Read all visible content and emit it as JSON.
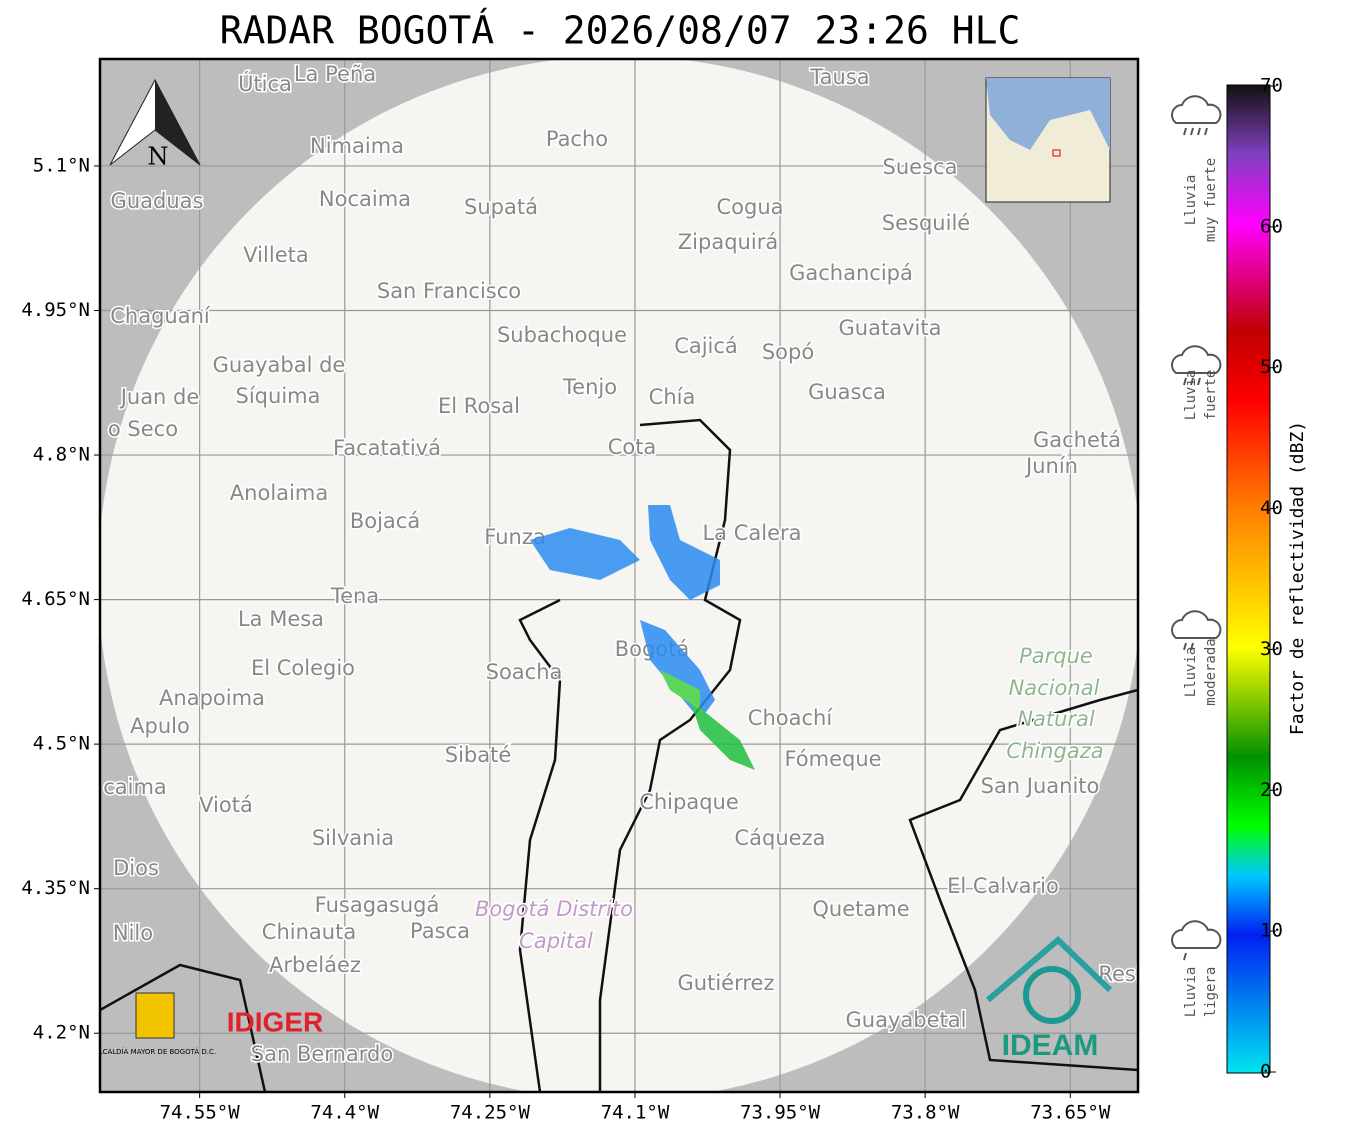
{
  "title": "RADAR BOGOTÁ - 2026/08/07 23:26 HLC",
  "map": {
    "xlim": [
      -74.653,
      -73.58
    ],
    "ylim": [
      4.139,
      5.211
    ],
    "xticks": [
      {
        "value": -74.55,
        "label": "74.55°W"
      },
      {
        "value": -74.4,
        "label": "74.4°W"
      },
      {
        "value": -74.25,
        "label": "74.25°W"
      },
      {
        "value": -74.1,
        "label": "74.1°W"
      },
      {
        "value": -73.95,
        "label": "73.95°W"
      },
      {
        "value": -73.8,
        "label": "73.8°W"
      },
      {
        "value": -73.65,
        "label": "73.65°W"
      }
    ],
    "yticks": [
      {
        "value": 5.1,
        "label": "5.1°N"
      },
      {
        "value": 4.95,
        "label": "4.95°N"
      },
      {
        "value": 4.8,
        "label": "4.8°N"
      },
      {
        "value": 4.65,
        "label": "4.65°N"
      },
      {
        "value": 4.5,
        "label": "4.5°N"
      },
      {
        "value": 4.35,
        "label": "4.35°N"
      },
      {
        "value": 4.2,
        "label": "4.2°N"
      }
    ],
    "north": "N",
    "places": [
      "Útica",
      "La Peña",
      "Tausa",
      "Pacho",
      "Nimaima",
      "Guaduas",
      "Nocaima",
      "Supatá",
      "Cogua",
      "Suesca",
      "Sesquilé",
      "Zipaquirá",
      "Villeta",
      "Gachancipá",
      "San Francisco",
      "Chaguaní",
      "Guatavita",
      "Subachoque",
      "Cajicá",
      "Sopó",
      "Guayabal de",
      "Síquima",
      "Juan de",
      "Tenjo",
      "Chía",
      "Guasca",
      "El Rosal",
      "o Seco",
      "Cota",
      "Facatativá",
      "Gachetá",
      "Junín",
      "Anolaima",
      "Bojacá",
      "Funza",
      "La Calera",
      "Tena",
      "La Mesa",
      "Bogotá",
      "El Colegio",
      "Soacha",
      "Anapoima",
      "Apulo",
      "Choachí",
      "Sibaté",
      "Fómeque",
      "San Juanito",
      "caima",
      "Viotá",
      "Chipaque",
      "Silvania",
      "Cáqueza",
      "Dios",
      "El Calvario",
      "Fusagasugá",
      "Quetame",
      "Nilo",
      "Chinauta",
      "Pasca",
      "Arbeláez",
      "Gutiérrez",
      "Guayabetal",
      "San Bernardo",
      "Resi"
    ],
    "park": [
      "Parque",
      "Nacional",
      "Natural",
      "Chingaza"
    ],
    "district": [
      "Bogotá Distrito",
      "Capital"
    ]
  },
  "logos": {
    "alcaldia": "ALCALDÍA MAYOR DE BOGOTÁ D.C.",
    "idiger": "IDIGER",
    "ideam": "IDEAM"
  },
  "colorbar": {
    "label": "Factor de reflectividad (dBZ)",
    "lim": [
      0,
      70
    ],
    "ticks": [
      0,
      10,
      20,
      30,
      40,
      50,
      60,
      70
    ],
    "levels": [
      {
        "line1": "Lluvia",
        "line2": "muy fuerte"
      },
      {
        "line1": "Lluvia",
        "line2": "fuerte"
      },
      {
        "line1": "Lluvia",
        "line2": "moderada"
      },
      {
        "line1": "Lluvia",
        "line2": "ligera"
      }
    ]
  }
}
